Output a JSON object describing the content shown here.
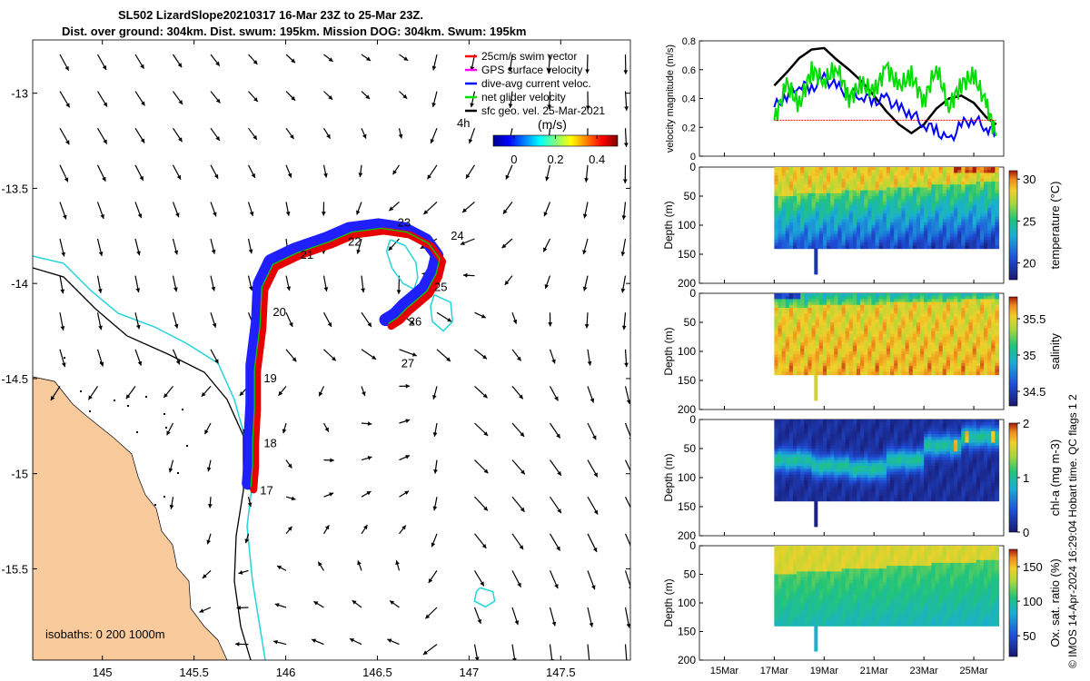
{
  "title": {
    "line1": "SL502 LizardSlope20210317 16-Mar 23Z to 25-Mar 23Z.",
    "line2": "Dist. over ground: 304km. Dist. swum: 195km. Mission DOG: 304km. Swum: 195km"
  },
  "credit": "© IMOS 14-Apr-2024 16:29:04 Hobart time. QC flags 1  2",
  "chart_data": [
    {
      "type": "scatter",
      "name": "map",
      "xlim": [
        144.62,
        147.88
      ],
      "ylim": [
        -15.98,
        -12.72
      ],
      "xticks": [
        145,
        145.5,
        146,
        146.5,
        147,
        147.5
      ],
      "xtick_labels": [
        "145",
        "145.5",
        "146",
        "146.5",
        "147",
        "147.5"
      ],
      "yticks": [
        -13,
        -13.5,
        -14,
        -14.5,
        -15,
        -15.5
      ],
      "ytick_labels": [
        "-13",
        "-13.5",
        "-14",
        "-14.5",
        "-15",
        "-15.5"
      ],
      "legend": {
        "position": "top-right",
        "entries": [
          {
            "label": "25cm/s swim vector",
            "color": "#ff0000"
          },
          {
            "label": "GPS surface velocity",
            "color": "#ff00ff"
          },
          {
            "label": "dive-avg current veloc.",
            "color": "#0000ff"
          },
          {
            "label": "net glider velocity",
            "color": "#00dd00"
          },
          {
            "label": "sfc geo. vel. 25-Mar-2021",
            "color": "#000000"
          }
        ],
        "scale_label": "4h"
      },
      "colorbar": {
        "label": "(m/s)",
        "ticks": [
          "0",
          "0.2",
          "0.4"
        ],
        "range": [
          -0.1,
          0.5
        ]
      },
      "isobaths_label": "isobaths: 0   200  1000m",
      "colors": {
        "land": "#f9cb9c",
        "track_red": "#e60000",
        "track_blue": "#1f1fff",
        "contour_cyan": "#22d4dc"
      },
      "track": [
        {
          "lon": 145.81,
          "lat": -15.07
        },
        {
          "lon": 145.82,
          "lat": -14.95
        },
        {
          "lon": 145.82,
          "lat": -14.83
        },
        {
          "lon": 145.83,
          "lat": -14.65
        },
        {
          "lon": 145.83,
          "lat": -14.45
        },
        {
          "lon": 145.86,
          "lat": -14.22
        },
        {
          "lon": 145.87,
          "lat": -14.02
        },
        {
          "lon": 145.93,
          "lat": -13.9
        },
        {
          "lon": 146.06,
          "lat": -13.84
        },
        {
          "lon": 146.24,
          "lat": -13.78
        },
        {
          "lon": 146.36,
          "lat": -13.73
        },
        {
          "lon": 146.52,
          "lat": -13.71
        },
        {
          "lon": 146.66,
          "lat": -13.73
        },
        {
          "lon": 146.78,
          "lat": -13.79
        },
        {
          "lon": 146.84,
          "lat": -13.87
        },
        {
          "lon": 146.82,
          "lat": -13.95
        },
        {
          "lon": 146.77,
          "lat": -14.04
        },
        {
          "lon": 146.71,
          "lat": -14.09
        },
        {
          "lon": 146.66,
          "lat": -14.13
        },
        {
          "lon": 146.61,
          "lat": -14.18
        },
        {
          "lon": 146.56,
          "lat": -14.21
        }
      ],
      "day_labels": [
        {
          "text": "17",
          "lon": 145.86,
          "lat": -15.11
        },
        {
          "text": "18",
          "lon": 145.88,
          "lat": -14.86
        },
        {
          "text": "19",
          "lon": 145.88,
          "lat": -14.52
        },
        {
          "text": "20",
          "lon": 145.93,
          "lat": -14.17
        },
        {
          "text": "21",
          "lon": 146.08,
          "lat": -13.87
        },
        {
          "text": "22",
          "lon": 146.34,
          "lat": -13.8
        },
        {
          "text": "23",
          "lon": 146.61,
          "lat": -13.7
        },
        {
          "text": "24",
          "lon": 146.9,
          "lat": -13.77
        },
        {
          "text": "25",
          "lon": 146.81,
          "lat": -14.04
        },
        {
          "text": "26",
          "lon": 146.67,
          "lat": -14.22
        },
        {
          "text": "27",
          "lon": 146.63,
          "lat": -14.44
        }
      ],
      "cyan_contours": [
        [
          {
            "lon": 146.57,
            "lat": -13.77
          },
          {
            "lon": 146.65,
            "lat": -13.8
          },
          {
            "lon": 146.71,
            "lat": -13.89
          },
          {
            "lon": 146.72,
            "lat": -13.97
          },
          {
            "lon": 146.7,
            "lat": -14.03
          },
          {
            "lon": 146.64,
            "lat": -14.0
          },
          {
            "lon": 146.58,
            "lat": -13.92
          },
          {
            "lon": 146.55,
            "lat": -13.83
          },
          {
            "lon": 146.57,
            "lat": -13.77
          }
        ],
        [
          {
            "lon": 146.81,
            "lat": -14.06
          },
          {
            "lon": 146.9,
            "lat": -14.1
          },
          {
            "lon": 146.91,
            "lat": -14.2
          },
          {
            "lon": 146.86,
            "lat": -14.25
          },
          {
            "lon": 146.8,
            "lat": -14.2
          },
          {
            "lon": 146.79,
            "lat": -14.12
          },
          {
            "lon": 146.81,
            "lat": -14.06
          }
        ],
        [
          {
            "lon": 147.06,
            "lat": -15.6
          },
          {
            "lon": 147.13,
            "lat": -15.62
          },
          {
            "lon": 147.14,
            "lat": -15.67
          },
          {
            "lon": 147.09,
            "lat": -15.7
          },
          {
            "lon": 147.03,
            "lat": -15.67
          },
          {
            "lon": 147.04,
            "lat": -15.62
          },
          {
            "lon": 147.06,
            "lat": -15.6
          }
        ]
      ]
    },
    {
      "type": "line",
      "name": "velocity",
      "ylabel": "velocity magnitude (m/s)",
      "ylim": [
        0,
        0.8
      ],
      "yticks": [
        "0",
        "0.2",
        "0.4",
        "0.6",
        "0.8"
      ],
      "x": [
        17,
        17.5,
        18,
        18.5,
        19,
        19.5,
        20,
        20.5,
        21,
        21.5,
        22,
        22.5,
        23,
        23.5,
        24,
        24.5,
        25,
        25.5,
        25.9
      ],
      "series": [
        {
          "color": "#000000",
          "values": [
            0.49,
            0.58,
            0.68,
            0.74,
            0.75,
            0.67,
            0.6,
            0.52,
            0.42,
            0.31,
            0.22,
            0.16,
            0.22,
            0.33,
            0.4,
            0.42,
            0.37,
            0.27,
            0.22
          ]
        },
        {
          "color": "#0000ff",
          "values": [
            0.34,
            0.42,
            0.5,
            0.47,
            0.54,
            0.48,
            0.44,
            0.42,
            0.38,
            0.4,
            0.33,
            0.3,
            0.22,
            0.18,
            0.1,
            0.22,
            0.26,
            0.2,
            0.16
          ]
        },
        {
          "color": "#00dd00",
          "values": [
            0.25,
            0.5,
            0.35,
            0.6,
            0.52,
            0.62,
            0.4,
            0.5,
            0.44,
            0.62,
            0.48,
            0.56,
            0.38,
            0.62,
            0.34,
            0.5,
            0.56,
            0.36,
            0.14
          ]
        },
        {
          "color": "#ff0000",
          "values": [
            0.25,
            0.25,
            0.25,
            0.25,
            0.25,
            0.25,
            0.25,
            0.25,
            0.25,
            0.25,
            0.25,
            0.25,
            0.25,
            0.25,
            0.25,
            0.25,
            0.25,
            0.25,
            0.25
          ]
        }
      ]
    },
    {
      "type": "heatmap",
      "name": "temperature",
      "ylabel": "Depth (m)",
      "ylim": [
        200,
        0
      ],
      "yticks": [
        "0",
        "50",
        "100",
        "150",
        "200"
      ],
      "colorbar_label": "temperature (°C)",
      "colorbar_ticks": [
        "20",
        "25",
        "30"
      ],
      "crange": [
        18,
        31
      ],
      "x_range": [
        17,
        26
      ],
      "mixed_layer_depth": [
        55,
        55,
        50,
        45,
        40,
        30
      ],
      "surface_value": 28.5,
      "bottom_value": 22
    },
    {
      "type": "heatmap",
      "name": "salinity",
      "ylabel": "Depth (m)",
      "ylim": [
        200,
        0
      ],
      "yticks": [
        "0",
        "50",
        "100",
        "150",
        "200"
      ],
      "colorbar_label": "salinity",
      "colorbar_ticks": [
        "34.5",
        "35",
        "35.5"
      ],
      "crange": [
        34.3,
        35.8
      ],
      "x_range": [
        17,
        26
      ],
      "surface_value": 34.9,
      "bottom_value": 35.5
    },
    {
      "type": "heatmap",
      "name": "chl",
      "ylabel": "Depth (m)",
      "ylim": [
        200,
        0
      ],
      "yticks": [
        "0",
        "50",
        "100",
        "150",
        "200"
      ],
      "colorbar_label": "chl-a (mg m-3)",
      "colorbar_ticks": [
        "0",
        "1",
        "2"
      ],
      "crange": [
        0,
        2
      ],
      "x_range": [
        17,
        26
      ],
      "dcm_depth": [
        55,
        65,
        85,
        60,
        40,
        30
      ]
    },
    {
      "type": "heatmap",
      "name": "oxygen",
      "ylabel": "Depth (m)",
      "ylim": [
        200,
        0
      ],
      "yticks": [
        "0",
        "50",
        "100",
        "150",
        "200"
      ],
      "colorbar_label": "Ox. sat. ratio (%)",
      "colorbar_ticks": [
        "50",
        "100",
        "150"
      ],
      "crange": [
        20,
        175
      ],
      "x_range": [
        17,
        26
      ],
      "xtick_labels": [
        "15Mar",
        "17Mar",
        "19Mar",
        "21Mar",
        "23Mar",
        "25Mar"
      ],
      "xticks": [
        15,
        17,
        19,
        21,
        23,
        25
      ],
      "xlim": [
        14,
        26.2
      ]
    }
  ]
}
